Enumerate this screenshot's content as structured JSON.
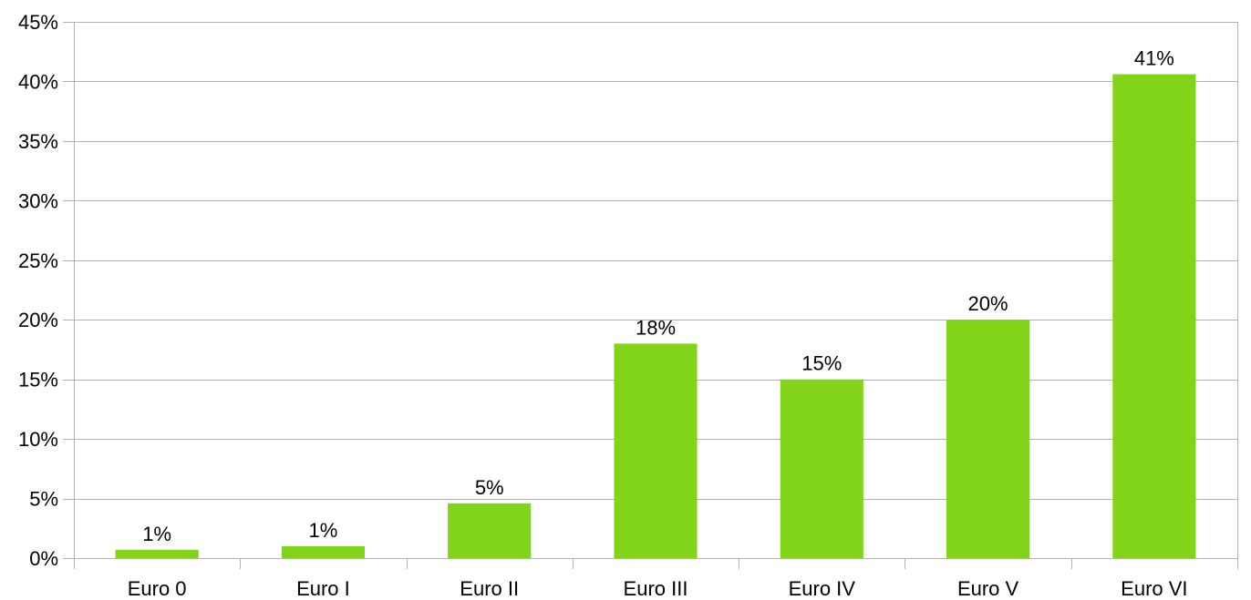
{
  "chart_data": {
    "type": "bar",
    "categories": [
      "Euro 0",
      "Euro I",
      "Euro II",
      "Euro III",
      "Euro IV",
      "Euro V",
      "Euro VI"
    ],
    "values": [
      0.7,
      1.0,
      4.6,
      18.0,
      15.0,
      20.0,
      40.6
    ],
    "data_labels": [
      "1%",
      "1%",
      "5%",
      "18%",
      "15%",
      "20%",
      "41%"
    ],
    "y_ticks": [
      "0%",
      "5%",
      "10%",
      "15%",
      "20%",
      "25%",
      "30%",
      "35%",
      "40%",
      "45%"
    ],
    "ylim": [
      0,
      45
    ],
    "y_unit": "%",
    "grid": true,
    "legend": "none",
    "title": "",
    "xlabel": "",
    "ylabel": "",
    "colors": {
      "bar": "#81d41a",
      "grid": "#b3b3b3",
      "text": "#000000"
    }
  }
}
